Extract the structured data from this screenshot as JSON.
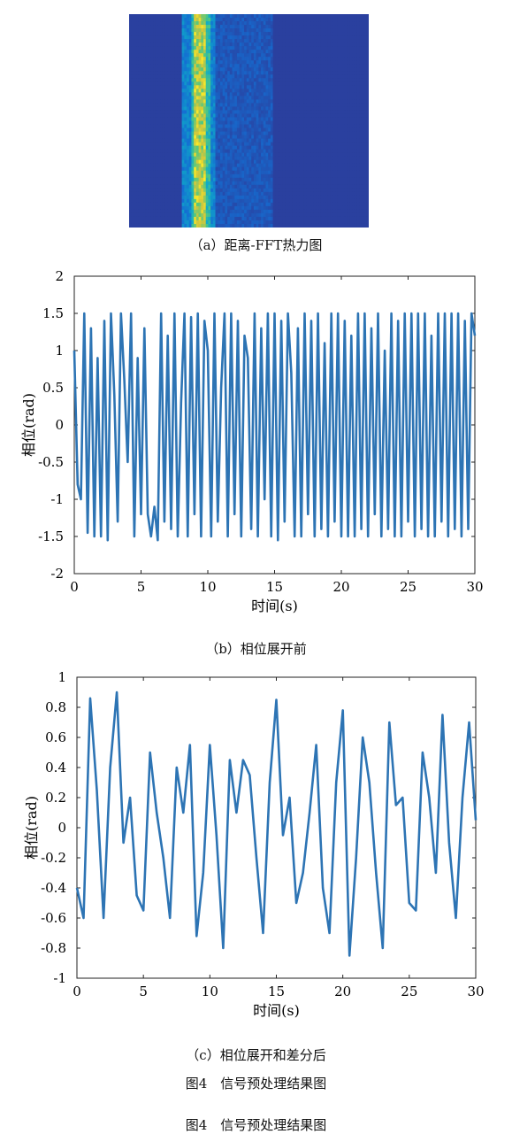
{
  "captions": {
    "a": "（a）距离-FFT热力图",
    "b": "（b）相位展开前",
    "c": "（c）相位展开和差分后",
    "figure_title_1": "图4　信号预处理结果图",
    "figure_title_2": "图4　信号预处理结果图"
  },
  "chart_data": [
    {
      "id": "a",
      "type": "heatmap",
      "title": "",
      "xlabel": "",
      "ylabel": "",
      "colormap": "parula",
      "description_of_columns": "range bins; a bright yellow/green band at range bins ~26-32 of 100",
      "n_cols": 100,
      "n_rows": 60,
      "colors": {
        "low": "#3b3aa3",
        "mid": "#1fb1cf",
        "high": "#f4e23a"
      }
    },
    {
      "id": "b",
      "type": "line",
      "xlabel": "时间(s)",
      "ylabel": "相位(rad)",
      "xlim": [
        0,
        30
      ],
      "ylim": [
        -2,
        2
      ],
      "xticks": [
        0,
        5,
        10,
        15,
        20,
        25,
        30
      ],
      "yticks": [
        2,
        1.5,
        1,
        0.5,
        0,
        -0.5,
        -1,
        -1.5,
        -2
      ],
      "ytick_labels": [
        "2",
        "1.5",
        "1",
        "0.5",
        "0",
        "-0.5",
        "-1",
        "-1.5",
        "-2"
      ],
      "color": "#2d74b4",
      "x": [
        0,
        0.25,
        0.5,
        0.75,
        1,
        1.25,
        1.5,
        1.75,
        2,
        2.25,
        2.5,
        2.75,
        3,
        3.25,
        3.5,
        3.75,
        4,
        4.25,
        4.5,
        4.75,
        5,
        5.25,
        5.5,
        5.75,
        6,
        6.25,
        6.5,
        6.75,
        7,
        7.25,
        7.5,
        7.75,
        8,
        8.25,
        8.5,
        8.75,
        9,
        9.25,
        9.5,
        9.75,
        10,
        10.25,
        10.5,
        10.75,
        11,
        11.25,
        11.5,
        11.75,
        12,
        12.25,
        12.5,
        12.75,
        13,
        13.25,
        13.5,
        13.75,
        14,
        14.25,
        14.5,
        14.75,
        15,
        15.25,
        15.5,
        15.75,
        16,
        16.25,
        16.5,
        16.75,
        17,
        17.25,
        17.5,
        17.75,
        18,
        18.25,
        18.5,
        18.75,
        19,
        19.25,
        19.5,
        19.75,
        20,
        20.25,
        20.5,
        20.75,
        21,
        21.25,
        21.5,
        21.75,
        22,
        22.25,
        22.5,
        22.75,
        23,
        23.25,
        23.5,
        23.75,
        24,
        24.25,
        24.5,
        24.75,
        25,
        25.25,
        25.5,
        25.75,
        26,
        26.25,
        26.5,
        26.75,
        27,
        27.25,
        27.5,
        27.75,
        28,
        28.25,
        28.5,
        28.75,
        29,
        29.25,
        29.5,
        29.75,
        30
      ],
      "values": [
        1.0,
        -0.8,
        -1.0,
        1.5,
        -1.45,
        1.3,
        -1.5,
        0.9,
        -1.5,
        1.4,
        -1.55,
        1.5,
        0.4,
        -1.3,
        1.5,
        0.6,
        -0.5,
        1.5,
        -1.5,
        0.9,
        -1.2,
        1.3,
        -1.2,
        -1.5,
        -1.1,
        -1.55,
        1.5,
        -1.3,
        1.2,
        -1.4,
        1.5,
        -1.5,
        0.3,
        1.5,
        -1.5,
        1.45,
        -1.2,
        1.5,
        -1.5,
        1.4,
        1.0,
        -1.5,
        1.5,
        -1.3,
        0.5,
        1.5,
        -1.5,
        1.5,
        -1.2,
        1.4,
        -1.5,
        1.2,
        0.9,
        -1.4,
        1.5,
        -1.5,
        1.3,
        -1.0,
        1.5,
        -1.5,
        1.5,
        -1.55,
        1.4,
        -1.3,
        1.5,
        0.7,
        -1.5,
        1.3,
        -1.5,
        1.5,
        -1.2,
        1.4,
        -1.5,
        1.5,
        -1.4,
        1.1,
        -1.5,
        1.5,
        -1.3,
        1.5,
        -1.5,
        1.4,
        -1.5,
        1.2,
        -1.5,
        1.5,
        -1.4,
        1.5,
        -1.5,
        1.3,
        -1.2,
        1.5,
        -1.5,
        1.0,
        -1.4,
        1.5,
        -1.5,
        1.4,
        -1.5,
        1.5,
        -1.3,
        1.5,
        -1.5,
        1.5,
        -1.4,
        1.5,
        -1.5,
        1.2,
        -1.5,
        1.5,
        -1.3,
        1.5,
        -1.5,
        1.5,
        -1.4,
        1.5,
        -1.5,
        1.4,
        -1.4,
        1.5,
        1.2
      ]
    },
    {
      "id": "c",
      "type": "line",
      "xlabel": "时间(s)",
      "ylabel": "相位(rad)",
      "xlim": [
        0,
        30
      ],
      "ylim": [
        -1,
        1
      ],
      "xticks": [
        0,
        5,
        10,
        15,
        20,
        25,
        30
      ],
      "yticks": [
        1,
        0.8,
        0.6,
        0.4,
        0.2,
        0,
        -0.2,
        -0.4,
        -0.6,
        -0.8,
        -1
      ],
      "ytick_labels": [
        "1",
        "0.8",
        "0.6",
        "0.4",
        "0.2",
        "0",
        "-0.2",
        "-0.4",
        "-0.6",
        "-0.8",
        "-1"
      ],
      "color": "#2d74b4",
      "x": [
        0,
        0.5,
        1,
        1.5,
        2,
        2.5,
        3,
        3.5,
        4,
        4.5,
        5,
        5.5,
        6,
        6.5,
        7,
        7.5,
        8,
        8.5,
        9,
        9.5,
        10,
        10.5,
        11,
        11.5,
        12,
        12.5,
        13,
        13.5,
        14,
        14.5,
        15,
        15.5,
        16,
        16.5,
        17,
        17.5,
        18,
        18.5,
        19,
        19.5,
        20,
        20.5,
        21,
        21.5,
        22,
        22.5,
        23,
        23.5,
        24,
        24.5,
        25,
        25.5,
        26,
        26.5,
        27,
        27.5,
        28,
        28.5,
        29,
        29.5,
        30
      ],
      "values": [
        -0.4,
        -0.6,
        0.86,
        0.25,
        -0.6,
        0.4,
        0.9,
        -0.1,
        0.2,
        -0.45,
        -0.55,
        0.5,
        0.1,
        -0.2,
        -0.6,
        0.4,
        0.1,
        0.55,
        -0.72,
        -0.3,
        0.55,
        -0.05,
        -0.8,
        0.45,
        0.1,
        0.45,
        0.35,
        -0.2,
        -0.7,
        0.3,
        0.85,
        -0.05,
        0.2,
        -0.5,
        -0.3,
        0.1,
        0.55,
        -0.4,
        -0.7,
        0.3,
        0.78,
        -0.85,
        -0.2,
        0.6,
        0.3,
        -0.3,
        -0.8,
        0.7,
        0.15,
        0.2,
        -0.5,
        -0.55,
        0.5,
        0.2,
        -0.3,
        0.75,
        -0.1,
        -0.6,
        0.2,
        0.7,
        0.05
      ]
    }
  ]
}
